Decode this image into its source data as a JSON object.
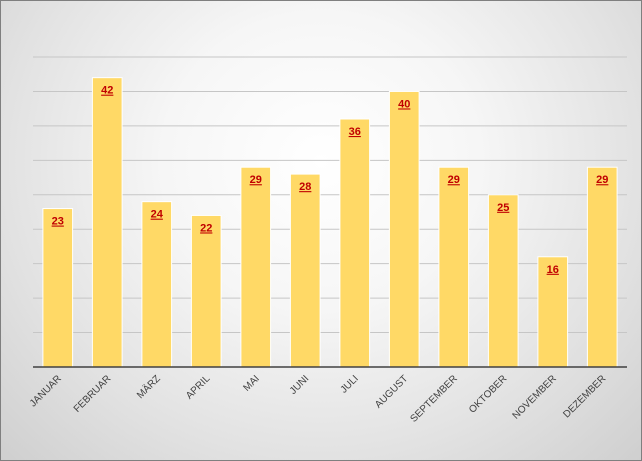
{
  "chart_data": {
    "type": "bar",
    "categories": [
      "JANUAR",
      "FEBRUAR",
      "MÄRZ",
      "APRIL",
      "MAI",
      "JUNI",
      "JULI",
      "AUGUST",
      "SEPTEMBER",
      "OKTOBER",
      "NOVEMBER",
      "DEZEMBER"
    ],
    "values": [
      23,
      42,
      24,
      22,
      29,
      28,
      36,
      40,
      29,
      25,
      16,
      29
    ],
    "ylim": [
      0,
      45
    ],
    "grid": true,
    "legend": "none",
    "colors": {
      "bar": "#ffd966",
      "data_label": "#c00000",
      "grid": "#c6c6c6",
      "axis": "#404040"
    }
  }
}
